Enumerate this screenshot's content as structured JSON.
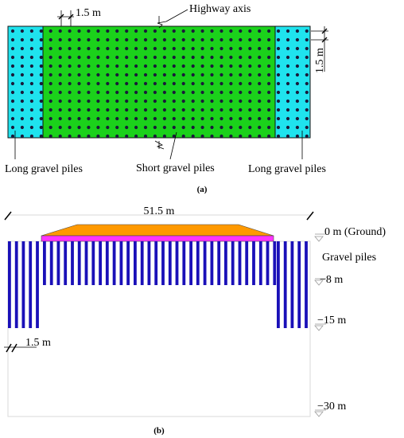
{
  "panel_a": {
    "spacing_top": "1.5 m",
    "spacing_side": "1.5 m",
    "axis_label": "Highway axis",
    "left_label": "Long gravel piles",
    "middle_label": "Short gravel piles",
    "right_label": "Long gravel piles",
    "caption": "(a)",
    "colors": {
      "long_zone": "#1fe3ee",
      "short_zone": "#1bd11b",
      "pile_dot": "#1a1a3a"
    }
  },
  "panel_b": {
    "width_label": "51.5 m",
    "spacing_label": "1.5 m",
    "levels": [
      {
        "label": "0 m (Ground)"
      },
      {
        "label": "−8 m"
      },
      {
        "label": "−15 m"
      },
      {
        "label": "−30 m"
      }
    ],
    "piles_label": "Gravel piles",
    "caption": "(b)",
    "colors": {
      "embankment": "#ff9900",
      "cushion": "#ff33ff",
      "pile": "#1a10b8"
    }
  }
}
